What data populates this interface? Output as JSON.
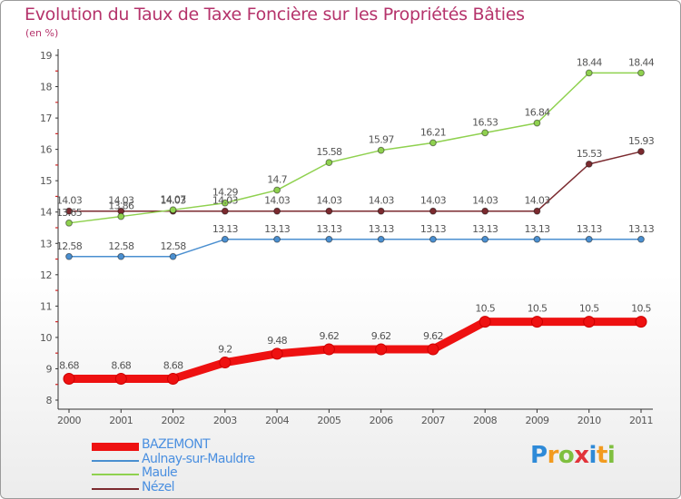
{
  "title": "Evolution du Taux de Taxe Foncière sur les Propriétés Bâties",
  "subtitle": "(en %)",
  "logo": {
    "letters": [
      "P",
      "r",
      "o",
      "x",
      "i",
      "t",
      "i"
    ],
    "colors": [
      "#2e8ad8",
      "#f29b1f",
      "#7fbf3f",
      "#e2333a",
      "#2e8ad8",
      "#f29b1f",
      "#7fbf3f"
    ]
  },
  "chart_data": {
    "type": "line",
    "title": "Evolution du Taux de Taxe Foncière sur les Propriétés Bâties",
    "ylabel": "(en %)",
    "xlabel": "",
    "categories": [
      "2000",
      "2001",
      "2002",
      "2003",
      "2004",
      "2005",
      "2006",
      "2007",
      "2008",
      "2009",
      "2010",
      "2011"
    ],
    "ylim": [
      8,
      19
    ],
    "yticks": [
      8,
      9,
      10,
      11,
      12,
      13,
      14,
      15,
      16,
      17,
      18,
      19
    ],
    "series": [
      {
        "name": "Nézel",
        "color": "#7b2a2f",
        "values": [
          14.03,
          14.03,
          14.03,
          14.03,
          14.03,
          14.03,
          14.03,
          14.03,
          14.03,
          14.03,
          15.53,
          15.93
        ],
        "labels": [
          "14.03",
          "14.03",
          "14.03",
          "14.03",
          "14.03",
          "14.03",
          "14.03",
          "14.03",
          "14.03",
          "14.03",
          "15.53",
          "15.93"
        ]
      },
      {
        "name": "Maule",
        "color": "#8fd14f",
        "values": [
          13.65,
          13.86,
          14.07,
          14.29,
          14.7,
          15.58,
          15.97,
          16.21,
          16.53,
          16.84,
          18.44,
          18.44
        ],
        "labels": [
          "13.65",
          "13.86",
          "14.07",
          "14.29",
          "14.7",
          "15.58",
          "15.97",
          "16.21",
          "16.53",
          "16.84",
          "18.44",
          "18.44"
        ]
      },
      {
        "name": "Aulnay-sur-Mauldre",
        "color": "#4a8fd0",
        "values": [
          12.58,
          12.58,
          12.58,
          13.13,
          13.13,
          13.13,
          13.13,
          13.13,
          13.13,
          13.13,
          13.13,
          13.13
        ],
        "labels": [
          "12.58",
          "12.58",
          "12.58",
          "13.13",
          "13.13",
          "13.13",
          "13.13",
          "13.13",
          "13.13",
          "13.13",
          "13.13",
          "13.13"
        ]
      },
      {
        "name": "BAZEMONT",
        "color": "#ee1111",
        "values": [
          8.68,
          8.68,
          8.68,
          9.2,
          9.48,
          9.62,
          9.62,
          9.62,
          10.5,
          10.5,
          10.5,
          10.5
        ],
        "labels": [
          "8.68",
          "8.68",
          "8.68",
          "9.2",
          "9.48",
          "9.62",
          "9.62",
          "9.62",
          "10.5",
          "10.5",
          "10.5",
          "10.5"
        ]
      }
    ],
    "legend": [
      "BAZEMONT",
      "Aulnay-sur-Mauldre",
      "Maule",
      "Nézel"
    ],
    "legend_position": "bottom-left"
  }
}
